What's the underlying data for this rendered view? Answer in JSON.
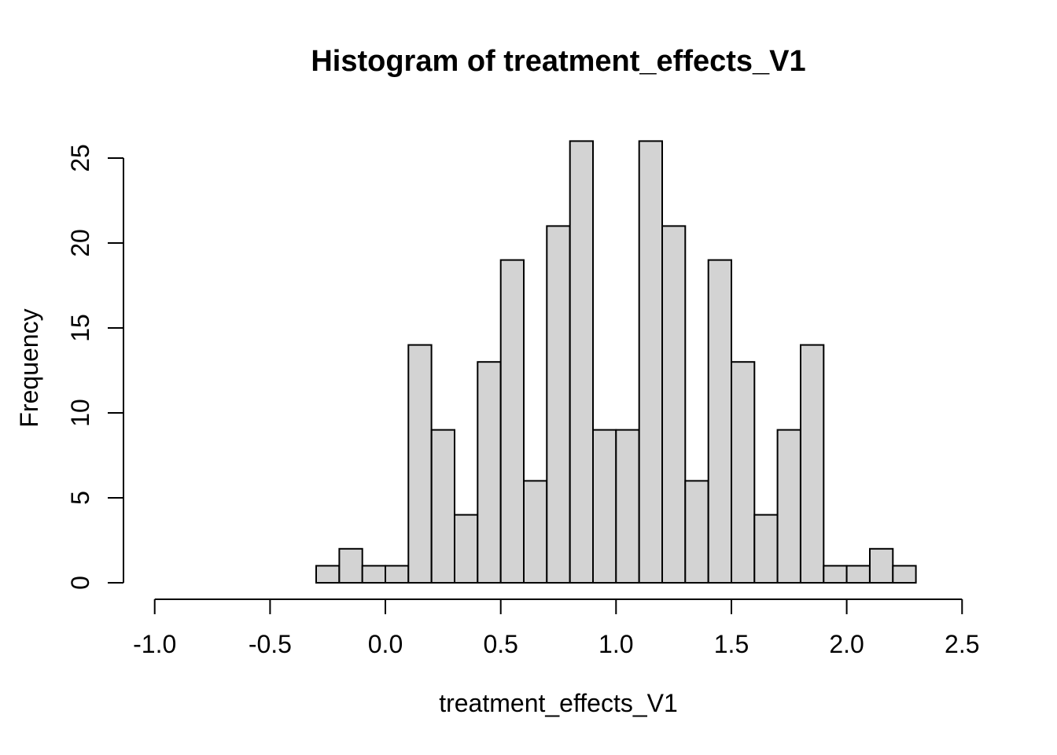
{
  "figure": {
    "background": "#ffffff"
  },
  "chart_data": {
    "type": "bar",
    "subtype": "histogram",
    "title": "Histogram of treatment_effects_V1",
    "xlabel": "treatment_effects_V1",
    "ylabel": "Frequency",
    "bin_start": -0.3,
    "bin_width": 0.1,
    "bin_end": 2.3,
    "counts": [
      1,
      2,
      1,
      1,
      14,
      9,
      4,
      13,
      19,
      6,
      21,
      26,
      9,
      9,
      26,
      21,
      6,
      19,
      13,
      4,
      9,
      14,
      1,
      1,
      2,
      1
    ],
    "x_ticks": [
      -1.0,
      -0.5,
      0.0,
      0.5,
      1.0,
      1.5,
      2.0,
      2.5
    ],
    "x_tick_labels": [
      "-1.0",
      "-0.5",
      "0.0",
      "0.5",
      "1.0",
      "1.5",
      "2.0",
      "2.5"
    ],
    "y_ticks": [
      0,
      5,
      10,
      15,
      20,
      25
    ],
    "y_tick_labels": [
      "0",
      "5",
      "10",
      "15",
      "20",
      "25"
    ],
    "xlim": [
      -1.0,
      2.5
    ],
    "ylim": [
      0,
      25
    ],
    "colors": {
      "bar_fill": "#d3d3d3",
      "bar_stroke": "#000000",
      "axis": "#000000",
      "text": "#000000",
      "background": "#ffffff"
    },
    "grid": false,
    "legend": "none"
  }
}
